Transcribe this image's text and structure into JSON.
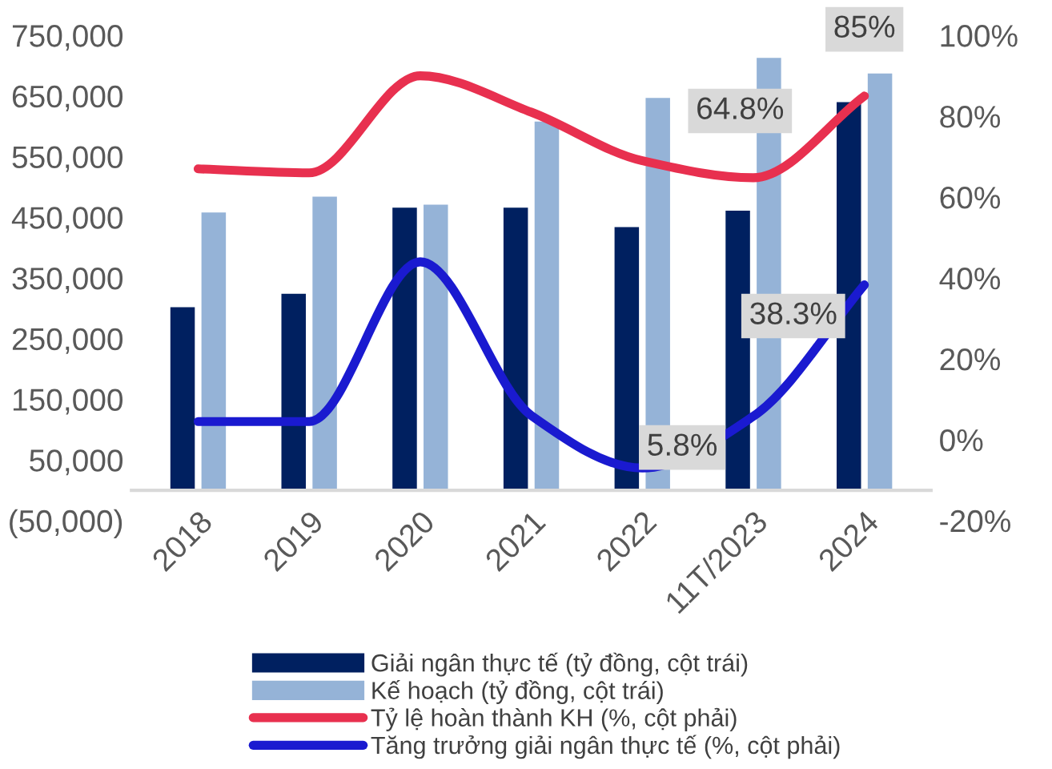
{
  "chart_data": {
    "type": "bar",
    "categories": [
      "2018",
      "2019",
      "2020",
      "2021",
      "2022",
      "11T/2023",
      "2024"
    ],
    "series": [
      {
        "name": "Giải ngân thực tế (tỷ đồng, cột trái)",
        "color": "#002060",
        "values": [
          302000,
          324000,
          466000,
          466000,
          434000,
          461000,
          640000
        ]
      },
      {
        "name": "Kế hoạch (tỷ đồng, cột trái)",
        "color": "#95b3d7",
        "values": [
          458000,
          484000,
          471000,
          608000,
          647000,
          713000,
          687000
        ]
      },
      {
        "name": "Tỷ lệ hoàn thành KH (%, cột phải)",
        "type": "line",
        "axis": "y2",
        "color": "#e8304f",
        "values": [
          67,
          66,
          90,
          81,
          69,
          64.8,
          85
        ],
        "value_labels": [
          null,
          null,
          null,
          null,
          null,
          "64.8%",
          "85%"
        ]
      },
      {
        "name": "Tăng trưởng giải ngân thực tế (%, cột phải)",
        "type": "line",
        "axis": "y2",
        "color": "#1a1ad0",
        "values": [
          4.5,
          4.5,
          44,
          6,
          -7,
          5.8,
          38.3
        ],
        "value_labels": [
          null,
          null,
          null,
          null,
          null,
          "5.8%",
          "38.3%"
        ]
      }
    ],
    "ylim": [
      -50000,
      750000
    ],
    "yticks": [
      {
        "value": -50000,
        "label": "(50,000)"
      },
      {
        "value": 50000,
        "label": "50,000"
      },
      {
        "value": 150000,
        "label": "150,000"
      },
      {
        "value": 250000,
        "label": "250,000"
      },
      {
        "value": 350000,
        "label": "350,000"
      },
      {
        "value": 450000,
        "label": "450,000"
      },
      {
        "value": 550000,
        "label": "550,000"
      },
      {
        "value": 650000,
        "label": "650,000"
      },
      {
        "value": 750000,
        "label": "750,000"
      }
    ],
    "y2lim": [
      -20,
      100
    ],
    "y2ticks": [
      {
        "value": -20,
        "label": "-20%"
      },
      {
        "value": 0,
        "label": "0%"
      },
      {
        "value": 20,
        "label": "20%"
      },
      {
        "value": 40,
        "label": "40%"
      },
      {
        "value": 60,
        "label": "60%"
      },
      {
        "value": 80,
        "label": "80%"
      },
      {
        "value": 100,
        "label": "100%"
      }
    ],
    "grid": false,
    "legend": "bottom"
  }
}
